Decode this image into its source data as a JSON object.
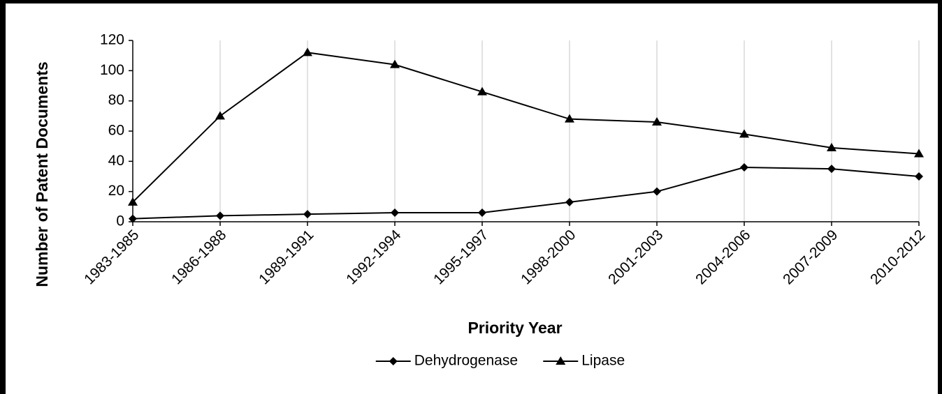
{
  "chart_data": {
    "type": "line",
    "x_label": "Priority Year",
    "y_label": "Number of Patent Documents",
    "categories": [
      "1983-1985",
      "1986-1988",
      "1989-1991",
      "1992-1994",
      "1995-1997",
      "1998-2000",
      "2001-2003",
      "2004-2006",
      "2007-2009",
      "2010-2012"
    ],
    "series": [
      {
        "name": "Dehydrogenase",
        "color": "#000000",
        "marker": "diamond",
        "values": [
          2,
          4,
          5,
          6,
          6,
          13,
          20,
          36,
          35,
          30
        ]
      },
      {
        "name": "Lipase",
        "color": "#000000",
        "marker": "triangle",
        "values": [
          13,
          70,
          112,
          104,
          86,
          68,
          66,
          58,
          49,
          45
        ]
      }
    ],
    "ylim": [
      0,
      120
    ],
    "yticks": [
      0,
      20,
      40,
      60,
      80,
      100,
      120
    ],
    "grid": true,
    "legend": "bottom"
  }
}
